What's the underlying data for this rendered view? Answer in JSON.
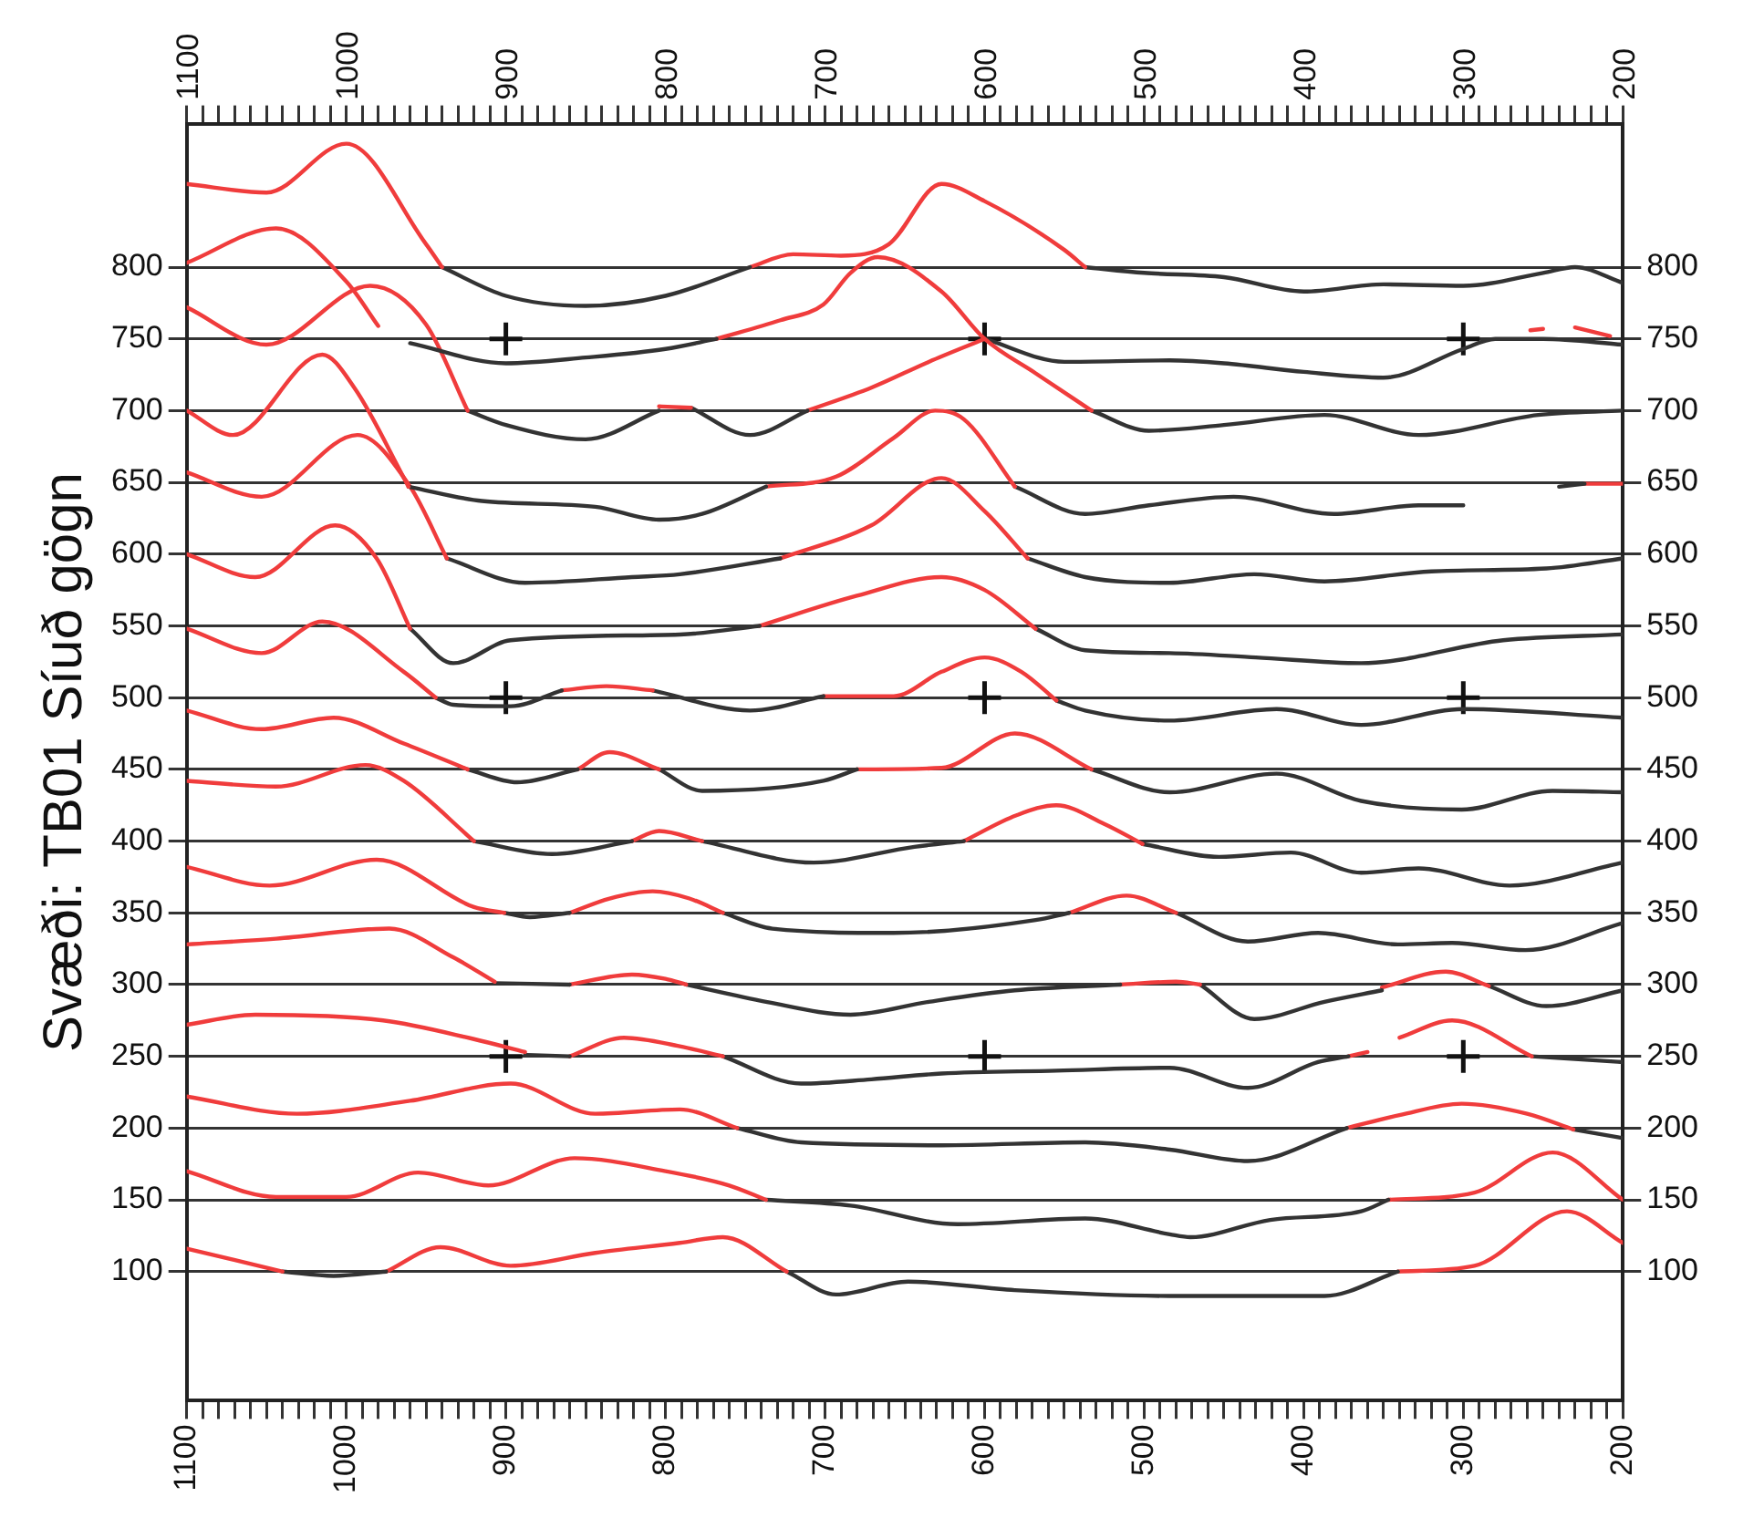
{
  "chart_data": {
    "type": "line",
    "ylabel": "Svæði: TB01 Síuð gögn",
    "legend": false,
    "grid": "y",
    "xlim": [
      1100,
      200
    ],
    "x2lim": [
      1100,
      200
    ],
    "ylim": [
      10,
      900
    ],
    "y2lim": [
      10,
      900
    ],
    "xticks": [
      1100,
      {
        "value": 1090,
        "label": null
      },
      {
        "value": 1080,
        "label": null
      },
      {
        "value": 1070,
        "label": null
      },
      {
        "value": 1060,
        "label": null
      },
      {
        "value": 1050,
        "label": null
      },
      {
        "value": 1040,
        "label": null
      },
      {
        "value": 1030,
        "label": null
      },
      {
        "value": 1020,
        "label": null
      },
      {
        "value": 1010,
        "label": null
      },
      1000,
      {
        "value": 990,
        "label": null
      },
      {
        "value": 980,
        "label": null
      },
      {
        "value": 970,
        "label": null
      },
      {
        "value": 960,
        "label": null
      },
      {
        "value": 950,
        "label": null
      },
      {
        "value": 940,
        "label": null
      },
      {
        "value": 930,
        "label": null
      },
      {
        "value": 920,
        "label": null
      },
      {
        "value": 910,
        "label": null
      },
      900,
      {
        "value": 890,
        "label": null
      },
      {
        "value": 880,
        "label": null
      },
      {
        "value": 870,
        "label": null
      },
      {
        "value": 860,
        "label": null
      },
      {
        "value": 850,
        "label": null
      },
      {
        "value": 840,
        "label": null
      },
      {
        "value": 830,
        "label": null
      },
      {
        "value": 820,
        "label": null
      },
      {
        "value": 810,
        "label": null
      },
      800,
      {
        "value": 790,
        "label": null
      },
      {
        "value": 780,
        "label": null
      },
      {
        "value": 770,
        "label": null
      },
      {
        "value": 760,
        "label": null
      },
      {
        "value": 750,
        "label": null
      },
      {
        "value": 740,
        "label": null
      },
      {
        "value": 730,
        "label": null
      },
      {
        "value": 720,
        "label": null
      },
      {
        "value": 710,
        "label": null
      },
      700,
      {
        "value": 690,
        "label": null
      },
      {
        "value": 680,
        "label": null
      },
      {
        "value": 670,
        "label": null
      },
      {
        "value": 660,
        "label": null
      },
      {
        "value": 650,
        "label": null
      },
      {
        "value": 640,
        "label": null
      },
      {
        "value": 630,
        "label": null
      },
      {
        "value": 620,
        "label": null
      },
      {
        "value": 610,
        "label": null
      },
      600,
      {
        "value": 590,
        "label": null
      },
      {
        "value": 580,
        "label": null
      },
      {
        "value": 570,
        "label": null
      },
      {
        "value": 560,
        "label": null
      },
      {
        "value": 550,
        "label": null
      },
      {
        "value": 540,
        "label": null
      },
      {
        "value": 530,
        "label": null
      },
      {
        "value": 520,
        "label": null
      },
      {
        "value": 510,
        "label": null
      },
      500,
      {
        "value": 490,
        "label": null
      },
      {
        "value": 480,
        "label": null
      },
      {
        "value": 470,
        "label": null
      },
      {
        "value": 460,
        "label": null
      },
      {
        "value": 450,
        "label": null
      },
      {
        "value": 440,
        "label": null
      },
      {
        "value": 430,
        "label": null
      },
      {
        "value": 420,
        "label": null
      },
      {
        "value": 410,
        "label": null
      },
      400,
      {
        "value": 390,
        "label": null
      },
      {
        "value": 380,
        "label": null
      },
      {
        "value": 370,
        "label": null
      },
      {
        "value": 360,
        "label": null
      },
      {
        "value": 350,
        "label": null
      },
      {
        "value": 340,
        "label": null
      },
      {
        "value": 330,
        "label": null
      },
      {
        "value": 320,
        "label": null
      },
      {
        "value": 310,
        "label": null
      },
      300,
      {
        "value": 290,
        "label": null
      },
      {
        "value": 280,
        "label": null
      },
      {
        "value": 270,
        "label": null
      },
      {
        "value": 260,
        "label": null
      },
      {
        "value": 250,
        "label": null
      },
      {
        "value": 240,
        "label": null
      },
      {
        "value": 230,
        "label": null
      },
      {
        "value": 220,
        "label": null
      },
      {
        "value": 210,
        "label": null
      },
      200
    ],
    "x2ticks": [
      1100,
      {
        "value": 1090,
        "label": null
      },
      {
        "value": 1080,
        "label": null
      },
      {
        "value": 1070,
        "label": null
      },
      {
        "value": 1060,
        "label": null
      },
      {
        "value": 1050,
        "label": null
      },
      {
        "value": 1040,
        "label": null
      },
      {
        "value": 1030,
        "label": null
      },
      {
        "value": 1020,
        "label": null
      },
      {
        "value": 1010,
        "label": null
      },
      1000,
      {
        "value": 990,
        "label": null
      },
      {
        "value": 980,
        "label": null
      },
      {
        "value": 970,
        "label": null
      },
      {
        "value": 960,
        "label": null
      },
      {
        "value": 950,
        "label": null
      },
      {
        "value": 940,
        "label": null
      },
      {
        "value": 930,
        "label": null
      },
      {
        "value": 920,
        "label": null
      },
      {
        "value": 910,
        "label": null
      },
      900,
      {
        "value": 890,
        "label": null
      },
      {
        "value": 880,
        "label": null
      },
      {
        "value": 870,
        "label": null
      },
      {
        "value": 860,
        "label": null
      },
      {
        "value": 850,
        "label": null
      },
      {
        "value": 840,
        "label": null
      },
      {
        "value": 830,
        "label": null
      },
      {
        "value": 820,
        "label": null
      },
      {
        "value": 810,
        "label": null
      },
      800,
      {
        "value": 790,
        "label": null
      },
      {
        "value": 780,
        "label": null
      },
      {
        "value": 770,
        "label": null
      },
      {
        "value": 760,
        "label": null
      },
      {
        "value": 750,
        "label": null
      },
      {
        "value": 740,
        "label": null
      },
      {
        "value": 730,
        "label": null
      },
      {
        "value": 720,
        "label": null
      },
      {
        "value": 710,
        "label": null
      },
      700,
      {
        "value": 690,
        "label": null
      },
      {
        "value": 680,
        "label": null
      },
      {
        "value": 670,
        "label": null
      },
      {
        "value": 660,
        "label": null
      },
      {
        "value": 650,
        "label": null
      },
      {
        "value": 640,
        "label": null
      },
      {
        "value": 630,
        "label": null
      },
      {
        "value": 620,
        "label": null
      },
      {
        "value": 610,
        "label": null
      },
      600,
      {
        "value": 590,
        "label": null
      },
      {
        "value": 580,
        "label": null
      },
      {
        "value": 570,
        "label": null
      },
      {
        "value": 560,
        "label": null
      },
      {
        "value": 550,
        "label": null
      },
      {
        "value": 540,
        "label": null
      },
      {
        "value": 530,
        "label": null
      },
      {
        "value": 520,
        "label": null
      },
      {
        "value": 510,
        "label": null
      },
      500,
      {
        "value": 490,
        "label": null
      },
      {
        "value": 480,
        "label": null
      },
      {
        "value": 470,
        "label": null
      },
      {
        "value": 460,
        "label": null
      },
      {
        "value": 450,
        "label": null
      },
      {
        "value": 440,
        "label": null
      },
      {
        "value": 430,
        "label": null
      },
      {
        "value": 420,
        "label": null
      },
      {
        "value": 410,
        "label": null
      },
      400,
      {
        "value": 390,
        "label": null
      },
      {
        "value": 380,
        "label": null
      },
      {
        "value": 370,
        "label": null
      },
      {
        "value": 360,
        "label": null
      },
      {
        "value": 350,
        "label": null
      },
      {
        "value": 340,
        "label": null
      },
      {
        "value": 330,
        "label": null
      },
      {
        "value": 320,
        "label": null
      },
      {
        "value": 310,
        "label": null
      },
      300,
      {
        "value": 290,
        "label": null
      },
      {
        "value": 280,
        "label": null
      },
      {
        "value": 270,
        "label": null
      },
      {
        "value": 260,
        "label": null
      },
      {
        "value": 250,
        "label": null
      },
      {
        "value": 240,
        "label": null
      },
      {
        "value": 230,
        "label": null
      },
      {
        "value": 220,
        "label": null
      },
      {
        "value": 210,
        "label": null
      },
      200
    ],
    "yticks": [
      100,
      150,
      200,
      250,
      300,
      350,
      400,
      450,
      500,
      550,
      600,
      650,
      700,
      750,
      800
    ],
    "y2ticks": [
      100,
      150,
      200,
      250,
      300,
      350,
      400,
      450,
      500,
      550,
      600,
      650,
      700,
      750,
      800
    ],
    "series": [
      {
        "color": "#f03c3c",
        "x": [
          1100,
          1050,
          1000,
          950,
          940
        ],
        "values": [
          858,
          852,
          886,
          816,
          800
        ]
      },
      {
        "color": "#333333",
        "x": [
          940,
          900,
          850,
          800,
          747
        ],
        "values": [
          800,
          780,
          773,
          780,
          800
        ]
      },
      {
        "color": "#f03c3c",
        "x": [
          747,
          720,
          690,
          660,
          627,
          600,
          550,
          537
        ],
        "values": [
          800,
          809,
          808,
          816,
          858,
          846,
          812,
          800
        ]
      },
      {
        "color": "#333333",
        "x": [
          537,
          500,
          450,
          400,
          350,
          300,
          250,
          230,
          200
        ],
        "values": [
          800,
          796,
          793,
          783,
          788,
          787,
          796,
          800,
          789
        ]
      },
      {
        "color": "#f03c3c",
        "x": [
          1100,
          1044,
          1000,
          980
        ],
        "values": [
          803,
          827,
          790,
          759
        ]
      },
      {
        "color": "#333333",
        "x": [
          960,
          900,
          850,
          800,
          768
        ],
        "values": [
          747,
          733,
          737,
          743,
          750
        ]
      },
      {
        "color": "#f03c3c",
        "x": [
          768,
          728,
          701,
          684,
          667,
          627,
          600,
          568,
          533
        ],
        "values": [
          750,
          763,
          774,
          796,
          807,
          783,
          750,
          726,
          700
        ]
      },
      {
        "color": "#333333",
        "x": [
          533,
          497,
          450,
          387,
          328,
          253,
          200
        ],
        "values": [
          700,
          686,
          690,
          697,
          683,
          697,
          700
        ]
      },
      {
        "color": "#f03c3c",
        "x": [
          1100,
          1050,
          985,
          950,
          924
        ],
        "values": [
          772,
          746,
          787,
          760,
          700
        ]
      },
      {
        "color": "#333333",
        "x": [
          924,
          900,
          850,
          804
        ],
        "values": [
          700,
          690,
          680,
          700
        ]
      },
      {
        "color": "#f03c3c",
        "x": [
          804,
          784
        ],
        "values": [
          703,
          702
        ]
      },
      {
        "color": "#333333",
        "x": [
          784,
          747,
          711
        ],
        "values": [
          702,
          683,
          700
        ]
      },
      {
        "color": "#f03c3c",
        "x": [
          711,
          671,
          635,
          600
        ],
        "values": [
          700,
          716,
          734,
          750
        ]
      },
      {
        "color": "#333333",
        "x": [
          600,
          550,
          484,
          450,
          400,
          350,
          300,
          280,
          250,
          200
        ],
        "values": [
          750,
          734,
          735,
          733,
          727,
          723,
          743,
          750,
          750,
          746
        ]
      },
      {
        "color": "#f03c3c",
        "x": [
          258,
          250,
          240,
          230,
          208
        ],
        "values": [
          756,
          757,
          null,
          758,
          752
        ]
      },
      {
        "color": "#f03c3c",
        "x": [
          1100,
          1071,
          1015,
          995,
          961
        ],
        "values": [
          700,
          683,
          739,
          716,
          647
        ]
      },
      {
        "color": "#333333",
        "x": [
          961,
          915,
          844,
          804,
          777,
          737
        ],
        "values": [
          647,
          637,
          633,
          624,
          628,
          647
        ]
      },
      {
        "color": "#f03c3c",
        "x": [
          737,
          693,
          657,
          631,
          613,
          581
        ],
        "values": [
          647,
          654,
          681,
          700,
          694,
          647
        ]
      },
      {
        "color": "#333333",
        "x": [
          581,
          537,
          497,
          444,
          381,
          328,
          300
        ],
        "values": [
          647,
          628,
          634,
          640,
          628,
          634,
          634
        ]
      },
      {
        "color": "#333333",
        "x": [
          240,
          224
        ],
        "values": [
          647,
          649
        ]
      },
      {
        "color": "#f03c3c",
        "x": [
          224,
          200
        ],
        "values": [
          649,
          649
        ]
      },
      {
        "color": "#f03c3c",
        "x": [
          1100,
          1053,
          993,
          960,
          937
        ],
        "values": [
          657,
          640,
          683,
          647,
          597
        ]
      },
      {
        "color": "#333333",
        "x": [
          937,
          888,
          821,
          791,
          728
        ],
        "values": [
          597,
          580,
          584,
          586,
          597
        ]
      },
      {
        "color": "#f03c3c",
        "x": [
          728,
          671,
          627,
          600,
          573
        ],
        "values": [
          597,
          620,
          653,
          630,
          597
        ]
      },
      {
        "color": "#333333",
        "x": [
          573,
          537,
          484,
          431,
          387,
          320,
          248,
          200
        ],
        "values": [
          597,
          584,
          580,
          586,
          581,
          588,
          590,
          597
        ]
      },
      {
        "color": "#f03c3c",
        "x": [
          1100,
          1057,
          1007,
          981,
          960
        ],
        "values": [
          600,
          584,
          620,
          597,
          548
        ]
      },
      {
        "color": "#333333",
        "x": [
          960,
          933,
          897,
          791,
          741
        ],
        "values": [
          548,
          524,
          540,
          544,
          550
        ]
      },
      {
        "color": "#f03c3c",
        "x": [
          741,
          680,
          627,
          600,
          568
        ],
        "values": [
          550,
          571,
          584,
          575,
          548
        ]
      },
      {
        "color": "#333333",
        "x": [
          568,
          537,
          484,
          430,
          364,
          275,
          200
        ],
        "values": [
          548,
          533,
          531,
          528,
          524,
          540,
          544
        ]
      },
      {
        "color": "#f03c3c",
        "x": [
          1100,
          1053,
          1015,
          964,
          944
        ],
        "values": [
          548,
          531,
          553,
          518,
          500
        ]
      },
      {
        "color": "#333333",
        "x": [
          944,
          933,
          897,
          865
        ],
        "values": [
          500,
          495,
          494,
          505
        ]
      },
      {
        "color": "#f03c3c",
        "x": [
          865,
          837,
          808
        ],
        "values": [
          505,
          508,
          505
        ]
      },
      {
        "color": "#333333",
        "x": [
          808,
          747,
          701
        ],
        "values": [
          505,
          491,
          501
        ]
      },
      {
        "color": "#f03c3c",
        "x": [
          701,
          657,
          627,
          600,
          577,
          555
        ],
        "values": [
          501,
          501,
          518,
          528,
          518,
          498
        ]
      },
      {
        "color": "#333333",
        "x": [
          555,
          537,
          484,
          417,
          364,
          300,
          200
        ],
        "values": [
          498,
          491,
          484,
          492,
          481,
          492,
          486
        ]
      },
      {
        "color": "#f03c3c",
        "x": [
          1100,
          1053,
          1008,
          964,
          924
        ],
        "values": [
          491,
          478,
          486,
          468,
          450
        ]
      },
      {
        "color": "#333333",
        "x": [
          924,
          893,
          855
        ],
        "values": [
          450,
          441,
          450
        ]
      },
      {
        "color": "#f03c3c",
        "x": [
          855,
          835,
          804
        ],
        "values": [
          450,
          462,
          450
        ]
      },
      {
        "color": "#333333",
        "x": [
          804,
          777,
          701,
          680
        ],
        "values": [
          450,
          435,
          442,
          450
        ]
      },
      {
        "color": "#f03c3c",
        "x": [
          680,
          627,
          581,
          533
        ],
        "values": [
          450,
          451,
          475,
          450
        ]
      },
      {
        "color": "#333333",
        "x": [
          533,
          484,
          417,
          364,
          301,
          244,
          200
        ],
        "values": [
          450,
          434,
          447,
          428,
          422,
          435,
          434
        ]
      },
      {
        "color": "#f03c3c",
        "x": [
          1100,
          1044,
          988,
          964,
          920
        ],
        "values": [
          442,
          438,
          453,
          442,
          400
        ]
      },
      {
        "color": "#333333",
        "x": [
          920,
          871,
          821
        ],
        "values": [
          400,
          391,
          400
        ]
      },
      {
        "color": "#f03c3c",
        "x": [
          821,
          804,
          777
        ],
        "values": [
          400,
          407,
          400
        ]
      },
      {
        "color": "#333333",
        "x": [
          777,
          707,
          644,
          613
        ],
        "values": [
          400,
          385,
          396,
          400
        ]
      },
      {
        "color": "#f03c3c",
        "x": [
          613,
          580,
          555,
          525,
          501
        ],
        "values": [
          400,
          418,
          425,
          412,
          398
        ]
      },
      {
        "color": "#333333",
        "x": [
          501,
          453,
          408,
          364,
          328,
          271,
          200
        ],
        "values": [
          398,
          389,
          392,
          378,
          381,
          369,
          385
        ]
      },
      {
        "color": "#f03c3c",
        "x": [
          1100,
          1048,
          981,
          920,
          901
        ],
        "values": [
          382,
          369,
          387,
          354,
          350
        ]
      },
      {
        "color": "#333333",
        "x": [
          901,
          885,
          860
        ],
        "values": [
          350,
          347,
          350
        ]
      },
      {
        "color": "#f03c3c",
        "x": [
          860,
          835,
          808,
          785,
          764
        ],
        "values": [
          350,
          360,
          365,
          360,
          350
        ]
      },
      {
        "color": "#333333",
        "x": [
          764,
          733,
          657,
          568,
          547
        ],
        "values": [
          350,
          339,
          336,
          345,
          350
        ]
      },
      {
        "color": "#f03c3c",
        "x": [
          547,
          511,
          480
        ],
        "values": [
          350,
          362,
          350
        ]
      },
      {
        "color": "#333333",
        "x": [
          480,
          435,
          391,
          341,
          307,
          261,
          200
        ],
        "values": [
          350,
          330,
          336,
          328,
          329,
          324,
          343
        ]
      },
      {
        "color": "#f03c3c",
        "x": [
          1100,
          1044,
          973,
          933,
          907
        ],
        "values": [
          328,
          332,
          339,
          319,
          302
        ]
      },
      {
        "color": "#333333",
        "x": [
          907,
          860
        ],
        "values": [
          301,
          300
        ]
      },
      {
        "color": "#f03c3c",
        "x": [
          860,
          821,
          800,
          787
        ],
        "values": [
          300,
          307,
          304,
          300
        ]
      },
      {
        "color": "#333333",
        "x": [
          787,
          737,
          684,
          635,
          581,
          515
        ],
        "values": [
          300,
          288,
          279,
          288,
          296,
          300
        ]
      },
      {
        "color": "#f03c3c",
        "x": [
          515,
          480,
          465
        ],
        "values": [
          300,
          302,
          300
        ]
      },
      {
        "color": "#333333",
        "x": [
          465,
          431,
          387,
          351
        ],
        "values": [
          300,
          276,
          288,
          296
        ]
      },
      {
        "color": "#f03c3c",
        "x": [
          351,
          311,
          284
        ],
        "values": [
          298,
          309,
          299
        ]
      },
      {
        "color": "#333333",
        "x": [
          284,
          248,
          200
        ],
        "values": [
          299,
          285,
          296
        ]
      },
      {
        "color": "#f03c3c",
        "x": [
          1100,
          1057,
          977,
          920,
          888
        ],
        "values": [
          272,
          279,
          275,
          262,
          253
        ]
      },
      {
        "color": "#333333",
        "x": [
          888,
          860
        ],
        "values": [
          251,
          250
        ]
      },
      {
        "color": "#f03c3c",
        "x": [
          860,
          826,
          791,
          764
        ],
        "values": [
          250,
          263,
          257,
          250
        ]
      },
      {
        "color": "#333333",
        "x": [
          764,
          715,
          671,
          627,
          555,
          484,
          435,
          391,
          372
        ],
        "values": [
          250,
          231,
          234,
          238,
          240,
          242,
          228,
          246,
          250
        ]
      },
      {
        "color": "#f03c3c",
        "x": [
          372,
          360
        ],
        "values": [
          250,
          253
        ]
      },
      {
        "color": "#f03c3c",
        "x": [
          340,
          307,
          257
        ],
        "values": [
          263,
          275,
          250
        ]
      },
      {
        "color": "#333333",
        "x": [
          257,
          200
        ],
        "values": [
          250,
          246
        ]
      },
      {
        "color": "#f03c3c",
        "x": [
          1100,
          1031,
          960,
          897,
          844,
          791,
          755
        ],
        "values": [
          222,
          210,
          219,
          231,
          210,
          213,
          200
        ]
      },
      {
        "color": "#333333",
        "x": [
          755,
          715,
          627,
          537,
          484,
          435,
          373
        ],
        "values": [
          200,
          190,
          188,
          190,
          185,
          177,
          200
        ]
      },
      {
        "color": "#f03c3c",
        "x": [
          373,
          340,
          301,
          260,
          231
        ],
        "values": [
          200,
          209,
          217,
          210,
          199
        ]
      },
      {
        "color": "#333333",
        "x": [
          231,
          200
        ],
        "values": [
          199,
          193
        ]
      },
      {
        "color": "#f03c3c",
        "x": [
          1100,
          1044,
          1000,
          955,
          911,
          857,
          800,
          760,
          737
        ],
        "values": [
          170,
          152,
          152,
          169,
          160,
          179,
          170,
          160,
          150
        ]
      },
      {
        "color": "#333333",
        "x": [
          737,
          684,
          617,
          537,
          484,
          471,
          421,
          364,
          347
        ],
        "values": [
          150,
          146,
          133,
          137,
          126,
          124,
          136,
          142,
          150
        ]
      },
      {
        "color": "#f03c3c",
        "x": [
          347,
          293,
          244,
          200
        ],
        "values": [
          150,
          155,
          183,
          150
        ]
      },
      {
        "color": "#f03c3c",
        "x": [
          1100,
          1040
        ],
        "values": [
          116,
          100
        ]
      },
      {
        "color": "#333333",
        "x": [
          1040,
          1008,
          975
        ],
        "values": [
          100,
          97,
          100
        ]
      },
      {
        "color": "#f03c3c",
        "x": [
          975,
          941,
          897,
          844,
          791,
          764,
          724
        ],
        "values": [
          100,
          117,
          104,
          113,
          120,
          124,
          100
        ]
      },
      {
        "color": "#333333",
        "x": [
          724,
          693,
          648,
          581,
          484,
          387,
          341
        ],
        "values": [
          100,
          84,
          93,
          87,
          83,
          83,
          100
        ]
      },
      {
        "color": "#f03c3c",
        "x": [
          341,
          293,
          235,
          200
        ],
        "values": [
          100,
          104,
          142,
          120
        ]
      },
      {
        "type": "scatter",
        "color": "#111111",
        "marker": "cross",
        "x": [
          900,
          600,
          300,
          900,
          600,
          300,
          900,
          600,
          300
        ],
        "values": [
          750,
          750,
          750,
          500,
          500,
          500,
          250,
          250,
          250
        ]
      }
    ]
  }
}
